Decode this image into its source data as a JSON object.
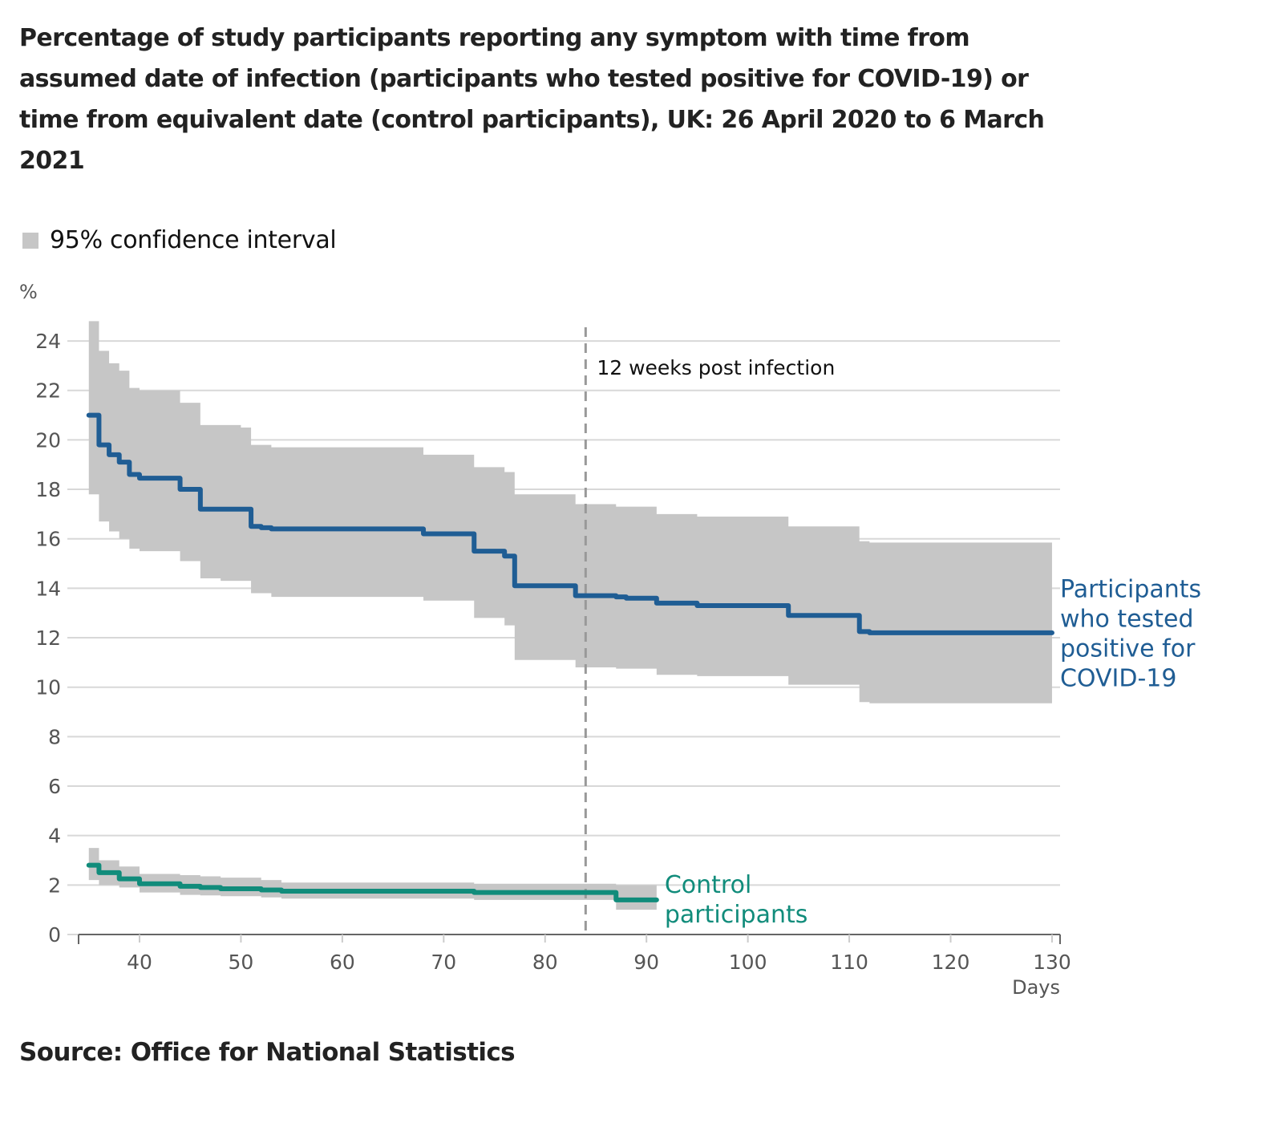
{
  "title": "Percentage of study participants reporting any symptom with time from assumed date of infection (participants who tested positive for COVID-19) or time from equivalent date (control participants), UK: 26 April 2020 to 6 March 2021",
  "legend": {
    "ci_label": "95% confidence interval",
    "ci_color": "#c6c6c6"
  },
  "source": "Source: Office for National Statistics",
  "chart_data": {
    "type": "line",
    "step": "after",
    "title": "Percentage of study participants reporting any symptom with time from assumed date of infection (participants who tested positive for COVID-19) or time from equivalent date (control participants), UK: 26 April 2020 to 6 March 2021",
    "xlabel": "Days",
    "ylabel": "%",
    "xlim": [
      34,
      131
    ],
    "ylim": [
      0,
      25
    ],
    "xticks": [
      40,
      50,
      60,
      70,
      80,
      90,
      100,
      110,
      120,
      130
    ],
    "yticks": [
      0,
      2,
      4,
      6,
      8,
      10,
      12,
      14,
      16,
      18,
      20,
      22,
      24
    ],
    "grid": true,
    "legend_position": "top-left",
    "annotations": [
      {
        "type": "vline",
        "x": 84,
        "label": "12 weeks post infection",
        "style": "dashed",
        "color": "#999999"
      }
    ],
    "series": [
      {
        "name": "Participants who tested positive for COVID-19",
        "label_lines": [
          "Participants",
          "who tested",
          "positive for",
          "COVID-19"
        ],
        "color": "#1f5d94",
        "x": [
          35,
          36,
          37,
          38,
          39,
          40,
          44,
          46,
          51,
          52,
          53,
          68,
          73,
          76,
          77,
          83,
          87,
          88,
          91,
          95,
          104,
          111,
          112,
          130
        ],
        "values": [
          21.0,
          19.8,
          19.4,
          19.1,
          18.6,
          18.45,
          18.0,
          17.2,
          16.5,
          16.45,
          16.4,
          16.2,
          15.5,
          15.3,
          14.1,
          13.7,
          13.65,
          13.6,
          13.4,
          13.3,
          12.9,
          12.25,
          12.2,
          12.2
        ],
        "ci": {
          "x": [
            35,
            36,
            37,
            38,
            39,
            40,
            44,
            46,
            48,
            50,
            51,
            53,
            68,
            73,
            76,
            77,
            83,
            87,
            91,
            95,
            104,
            111,
            112,
            130
          ],
          "upper": [
            24.8,
            23.6,
            23.1,
            22.8,
            22.1,
            22.0,
            21.5,
            20.6,
            20.6,
            20.5,
            19.8,
            19.7,
            19.4,
            18.9,
            18.7,
            17.8,
            17.4,
            17.3,
            17.0,
            16.9,
            16.5,
            15.9,
            15.85,
            15.85
          ],
          "lower": [
            17.8,
            16.7,
            16.3,
            16.0,
            15.6,
            15.5,
            15.1,
            14.4,
            14.3,
            14.3,
            13.8,
            13.65,
            13.5,
            12.8,
            12.5,
            11.1,
            10.8,
            10.75,
            10.5,
            10.45,
            10.1,
            9.4,
            9.35,
            9.35
          ]
        }
      },
      {
        "name": "Control participants",
        "label_lines": [
          "Control",
          "participants"
        ],
        "color": "#118c7b",
        "x": [
          35,
          36,
          38,
          40,
          44,
          46,
          48,
          52,
          54,
          73,
          87,
          91
        ],
        "values": [
          2.8,
          2.5,
          2.25,
          2.05,
          1.95,
          1.9,
          1.85,
          1.8,
          1.75,
          1.7,
          1.4,
          1.4
        ],
        "ci": {
          "x": [
            35,
            36,
            38,
            40,
            44,
            46,
            48,
            52,
            54,
            73,
            87,
            91
          ],
          "upper": [
            3.5,
            3.0,
            2.75,
            2.45,
            2.4,
            2.35,
            2.3,
            2.2,
            2.1,
            2.05,
            2.0,
            2.0
          ],
          "lower": [
            2.2,
            2.0,
            1.9,
            1.7,
            1.6,
            1.58,
            1.55,
            1.5,
            1.45,
            1.4,
            1.0,
            1.0
          ]
        }
      }
    ]
  }
}
